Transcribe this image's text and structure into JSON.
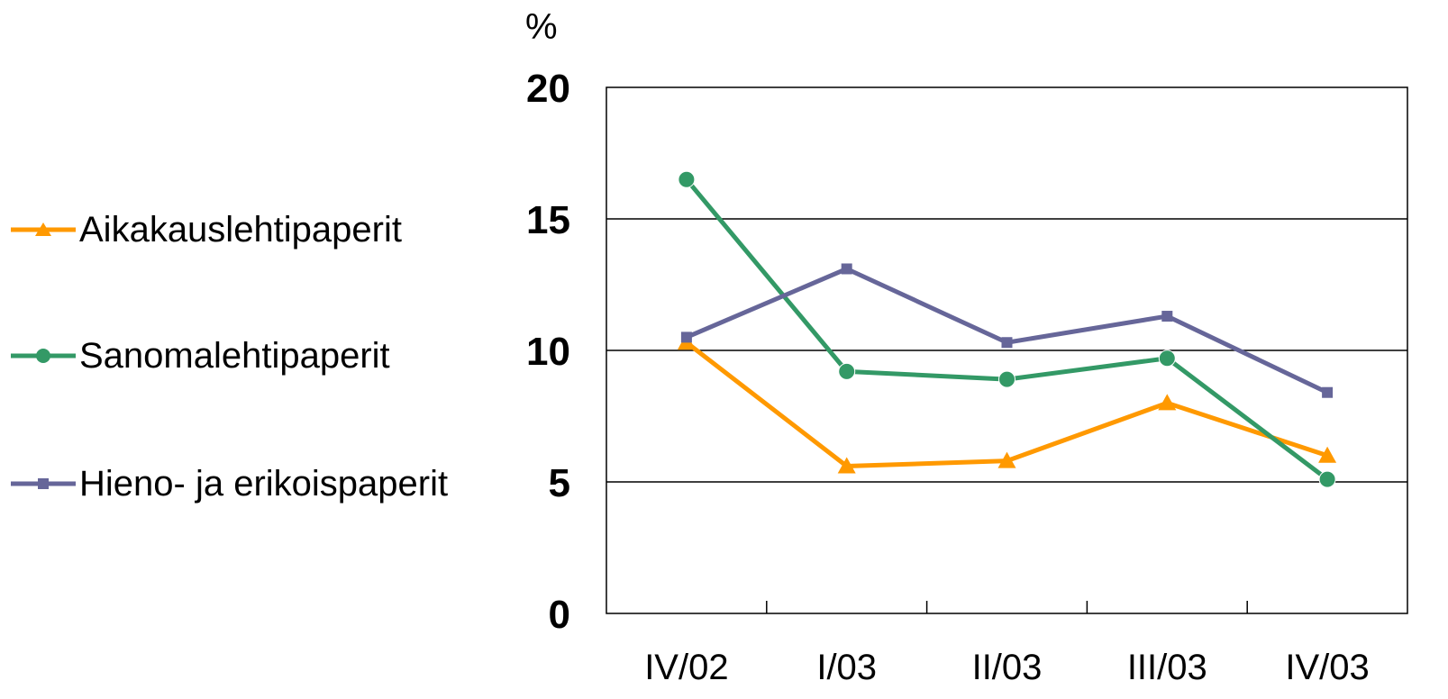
{
  "chart_data": {
    "type": "line",
    "title": "",
    "xlabel": "",
    "ylabel": "%",
    "ylim": [
      0,
      20
    ],
    "yticks": [
      "0",
      "5",
      "10",
      "15",
      "20"
    ],
    "categories": [
      "IV/02",
      "I/03",
      "II/03",
      "III/03",
      "IV/03"
    ],
    "legend_position": "left",
    "grid": true,
    "series": [
      {
        "name": "Aikakauslehtipaperit",
        "color": "#FF9900",
        "marker": "triangle",
        "values": [
          10.3,
          5.6,
          5.8,
          8.0,
          6.0
        ]
      },
      {
        "name": "Sanomalehtipaperit",
        "color": "#339966",
        "marker": "circle",
        "values": [
          16.5,
          9.2,
          8.9,
          9.7,
          5.1
        ]
      },
      {
        "name": "Hieno- ja erikoispaperit",
        "color": "#666699",
        "marker": "square",
        "values": [
          10.5,
          13.1,
          10.3,
          11.3,
          8.4
        ]
      }
    ]
  }
}
